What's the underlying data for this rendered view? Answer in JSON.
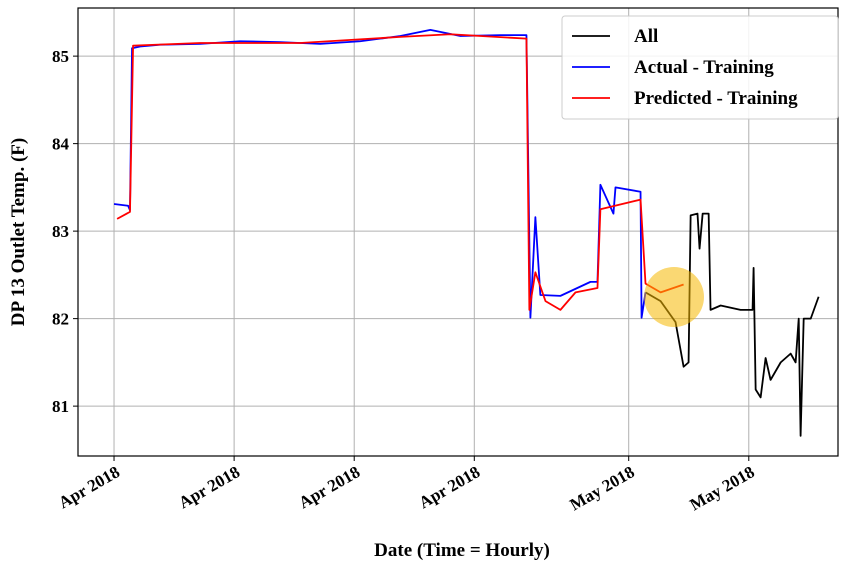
{
  "chart_data": {
    "type": "line",
    "ylabel": "DP 13 Outlet Temp. (F)",
    "xlabel": "Date (Time = Hourly)",
    "xlim": [
      -2.1,
      42.2
    ],
    "ylim": [
      80.43,
      85.55
    ],
    "xticks": [
      {
        "value": 0,
        "label": "Apr 2018"
      },
      {
        "value": 7,
        "label": "Apr 2018"
      },
      {
        "value": 14,
        "label": "Apr 2018"
      },
      {
        "value": 21,
        "label": "Apr 2018"
      },
      {
        "value": 30,
        "label": "May 2018"
      },
      {
        "value": 37,
        "label": "May 2018"
      }
    ],
    "yticks": [
      81,
      82,
      83,
      84,
      85
    ],
    "grid": true,
    "legend": "upper right",
    "series": [
      {
        "name": "All",
        "color": "#000000",
        "x": [
          30.98,
          31.86,
          32.73,
          33.2,
          33.49,
          33.61,
          34.01,
          34.13,
          34.31,
          34.66,
          34.77,
          35.36,
          36.52,
          37.22,
          37.28,
          37.4,
          37.69,
          37.98,
          38.27,
          38.86,
          39.44,
          39.73,
          39.91,
          40.02,
          40.2,
          40.61,
          41.07
        ],
        "values": [
          82.3,
          82.2,
          81.96,
          81.45,
          81.5,
          83.18,
          83.2,
          82.8,
          83.2,
          83.2,
          82.1,
          82.15,
          82.1,
          82.1,
          82.58,
          81.19,
          81.1,
          81.55,
          81.3,
          81.5,
          81.6,
          81.5,
          82.0,
          80.66,
          82.0,
          82.0,
          82.25
        ]
      },
      {
        "name": "Actual - Training",
        "color": "#0000ff",
        "x": [
          0,
          0.82,
          0.93,
          1.05,
          1.52,
          2.68,
          5.02,
          7.35,
          9.69,
          12.02,
          14.35,
          16.69,
          18.44,
          20.19,
          22.52,
          24.04,
          24.27,
          24.56,
          24.85,
          26.02,
          27.77,
          28.18,
          28.35,
          29.11,
          29.23,
          30.69,
          30.75,
          30.98
        ],
        "values": [
          83.31,
          83.29,
          83.24,
          85.09,
          85.11,
          85.13,
          85.14,
          85.17,
          85.16,
          85.14,
          85.17,
          85.23,
          85.3,
          85.23,
          85.24,
          85.24,
          82.01,
          83.16,
          82.27,
          82.26,
          82.42,
          82.42,
          83.53,
          83.2,
          83.5,
          83.45,
          82.01,
          82.3
        ]
      },
      {
        "name": "Predicted - Training",
        "color": "#ff0000",
        "x": [
          0.18,
          0.93,
          1.11,
          5.02,
          10.85,
          16.69,
          19.6,
          24.04,
          24.21,
          24.56,
          25.15,
          26.02,
          26.9,
          28.18,
          28.35,
          30.69,
          30.98,
          31.86,
          33.2
        ],
        "values": [
          83.14,
          83.22,
          85.12,
          85.15,
          85.15,
          85.22,
          85.25,
          85.2,
          82.1,
          82.53,
          82.2,
          82.1,
          82.3,
          82.35,
          83.25,
          83.36,
          82.4,
          82.3,
          82.39
        ]
      }
    ]
  }
}
